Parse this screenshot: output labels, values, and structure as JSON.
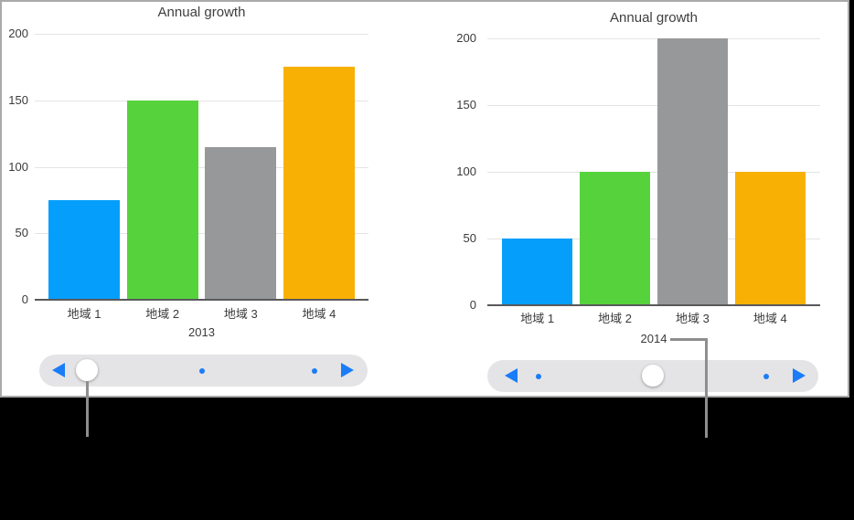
{
  "chart_data": [
    {
      "type": "bar",
      "title": "Annual growth",
      "categories": [
        "地域 1",
        "地域 2",
        "地域 3",
        "地域 4"
      ],
      "values": [
        75,
        150,
        115,
        175
      ],
      "x_axis_label": "2013",
      "y_ticks": [
        0,
        50,
        100,
        150,
        200
      ],
      "ylim": [
        0,
        200
      ],
      "bar_colors": [
        "#059ffb",
        "#56d33c",
        "#97989a",
        "#f8b005"
      ],
      "grid": true,
      "legend_position": "none"
    },
    {
      "type": "bar",
      "title": "Annual growth",
      "categories": [
        "地域 1",
        "地域 2",
        "地域 3",
        "地域 4"
      ],
      "values": [
        50,
        100,
        200,
        100
      ],
      "x_axis_label": "2014",
      "y_ticks": [
        0,
        50,
        100,
        150,
        200
      ],
      "ylim": [
        0,
        200
      ],
      "bar_colors": [
        "#059ffb",
        "#56d33c",
        "#97989a",
        "#f8b005"
      ],
      "grid": true,
      "legend_position": "none"
    }
  ],
  "sliders": [
    {
      "id": "slider-2013",
      "knob_position": "start"
    },
    {
      "id": "slider-2014",
      "knob_position": "middle"
    }
  ],
  "colors": {
    "grid": "#e4e4e4",
    "axis": "#59595b",
    "text": "#3a3a3a",
    "callout": "#8e8e8e",
    "slider_track": "#e4e4e6",
    "slider_accent": "#1b7cf8",
    "panel_background": "#ffffff",
    "surround_background": "#000000"
  }
}
